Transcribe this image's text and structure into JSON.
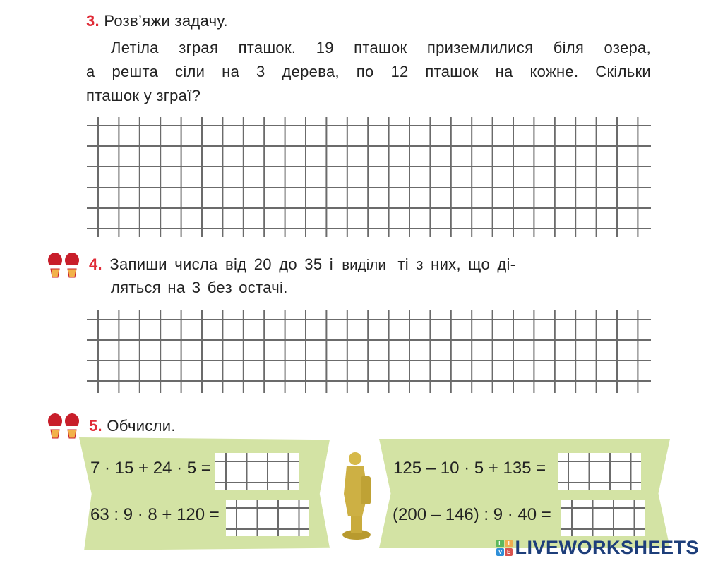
{
  "task3": {
    "number": "3.",
    "title": "Розв’яжи задачу.",
    "lines": [
      "Летіла зграя пташок. 19 пташок приземлилися біля озера,",
      "а решта сіли на 3 дерева, по 12 пташок на кожне. Скільки",
      "пташок у зграї?"
    ]
  },
  "task4": {
    "number": "4.",
    "line1_a": "Запиши числа від 20 до 35 і",
    "line1_word": "виділи",
    "line1_b": "ті з них, що ді-",
    "line2": "ляться на 3 без остачі."
  },
  "task5": {
    "number": "5.",
    "title": "Обчисли.",
    "expressions": [
      "7 · 15 + 24 · 5 =",
      "63 : 9 · 8 + 120 =",
      "125 – 10 · 5 + 135 =",
      "(200 – 146) : 9 · 40 ="
    ]
  },
  "icons": {
    "task_marker": "mittens-icon",
    "figure": "golden-statue-icon"
  },
  "colors": {
    "number": "#e02b37",
    "panel": "#d3e3a4",
    "logo": "#1d3e7a"
  },
  "logo": {
    "text": "LIVEWORKSHEETS",
    "letters": [
      "L",
      "I",
      "V",
      "E"
    ]
  }
}
